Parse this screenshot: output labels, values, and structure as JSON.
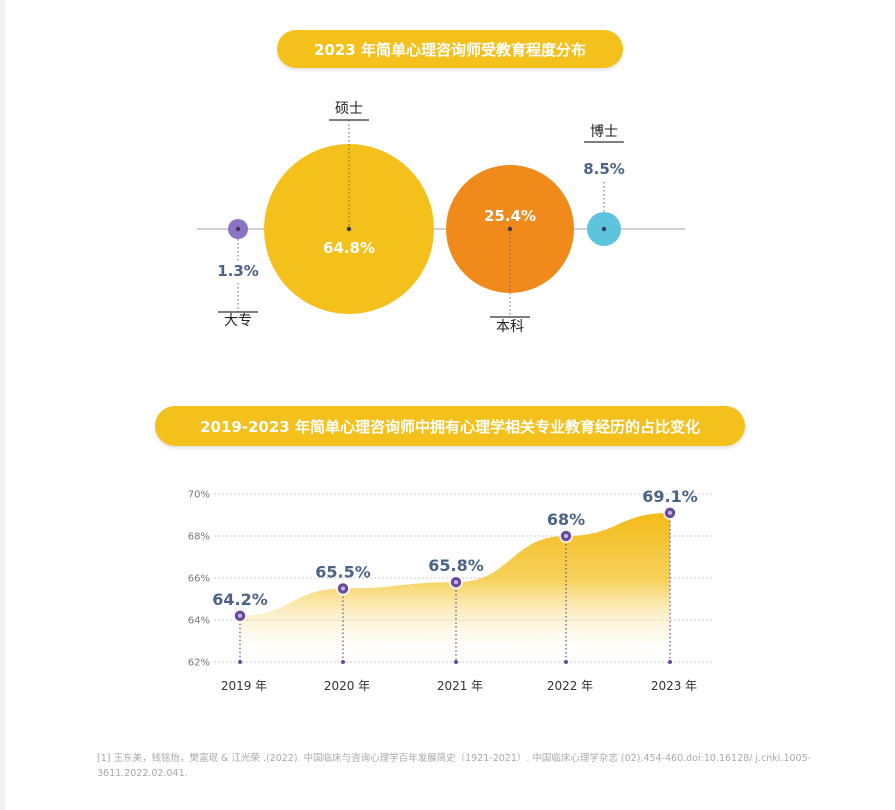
{
  "colors": {
    "accent": "#f3c01c",
    "orange": "#ef8a1b",
    "purple": "#8b73c3",
    "cyan": "#5ec3dd",
    "label_blue": "#4b6389",
    "line_purple": "#6a4a99"
  },
  "bubble_chart": {
    "title": "2023 年简单心理咨询师受教育程度分布",
    "chart_data": {
      "type": "bubble",
      "title": "2023 年简单心理咨询师受教育程度分布",
      "categories": [
        "大专",
        "硕士",
        "本科",
        "博士"
      ],
      "values": [
        1.3,
        64.8,
        25.4,
        8.5
      ],
      "value_labels": [
        "1.3%",
        "64.8%",
        "25.4%",
        "8.5%"
      ]
    }
  },
  "line_chart": {
    "title": "2019-2023 年简单心理咨询师中拥有心理学相关专业教育经历的占比变化",
    "chart_data": {
      "type": "area",
      "title": "2019-2023 年简单心理咨询师中拥有心理学相关专业教育经历的占比变化",
      "categories": [
        "2019 年",
        "2020 年",
        "2021 年",
        "2022 年",
        "2023 年"
      ],
      "values": [
        64.2,
        65.5,
        65.8,
        68,
        69.1
      ],
      "value_labels": [
        "64.2%",
        "65.5%",
        "65.8%",
        "68%",
        "69.1%"
      ],
      "yticks": [
        62,
        64,
        66,
        68,
        70
      ],
      "ytick_labels": [
        "62%",
        "64%",
        "66%",
        "68%",
        "70%"
      ],
      "ylim": [
        62,
        70
      ],
      "grid": true
    }
  },
  "footnote": "[1] 王东美，钱铭怡，樊富珉 & 江光荣 .(2022). 中国临床与咨询心理学百年发展简史（1921-2021）. 中国临床心理学杂志 (02),454-460.doi:10.16128/ j.cnki.1005-3611.2022.02.041."
}
